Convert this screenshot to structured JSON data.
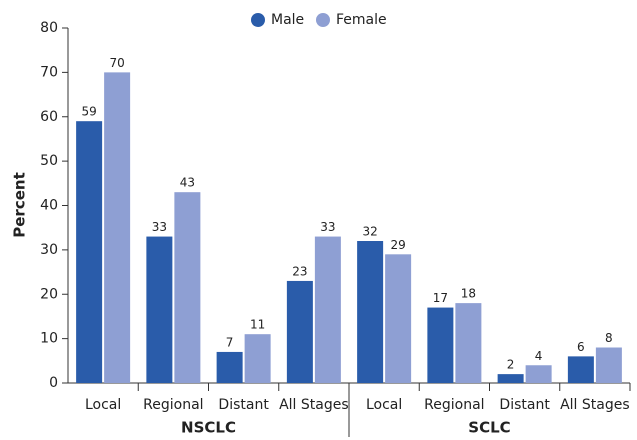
{
  "chart_data": {
    "type": "bar",
    "y_label": "Percent",
    "categories": [
      "Local",
      "Regional",
      "Distant",
      "All Stages",
      "Local",
      "Regional",
      "Distant",
      "All Stages"
    ],
    "groups": [
      "NSCLC",
      "SCLC"
    ],
    "series": [
      {
        "name": "Male",
        "color": "#2a5caa",
        "values": [
          59,
          33,
          7,
          23,
          32,
          17,
          2,
          6
        ]
      },
      {
        "name": "Female",
        "color": "#8e9fd3",
        "values": [
          70,
          43,
          11,
          33,
          29,
          18,
          4,
          8
        ]
      }
    ],
    "ylim": [
      0,
      80
    ],
    "yticks": [
      0,
      10,
      20,
      30,
      40,
      50,
      60,
      70,
      80
    ],
    "legend": "top"
  }
}
